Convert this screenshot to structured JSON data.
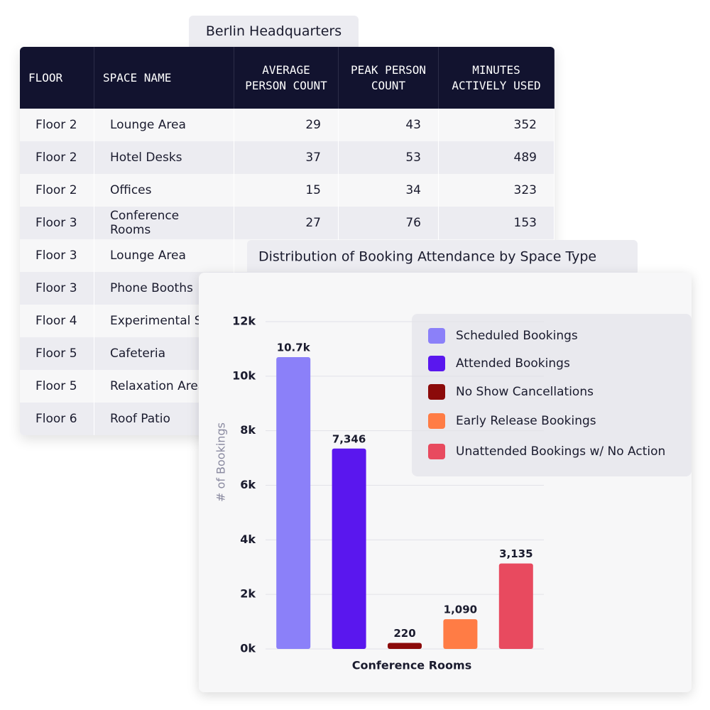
{
  "table": {
    "title": "Berlin Headquarters",
    "columns": [
      "FLOOR",
      "SPACE NAME",
      "AVERAGE PERSON COUNT",
      "PEAK PERSON COUNT",
      "MINUTES ACTIVELY USED"
    ],
    "rows": [
      [
        "Floor 2",
        "Lounge Area",
        29,
        43,
        352
      ],
      [
        "Floor 2",
        "Hotel Desks",
        37,
        53,
        489
      ],
      [
        "Floor 2",
        "Offices",
        15,
        34,
        323
      ],
      [
        "Floor 3",
        "Conference Rooms",
        27,
        76,
        153
      ],
      [
        "Floor 3",
        "Lounge Area"
      ],
      [
        "Floor 3",
        "Phone Booths"
      ],
      [
        "Floor 4",
        "Experimental Sp"
      ],
      [
        "Floor 5",
        "Cafeteria"
      ],
      [
        "Floor 5",
        "Relaxation Area"
      ],
      [
        "Floor 6",
        "Roof Patio"
      ]
    ]
  },
  "chart_data": {
    "type": "bar",
    "title": "Distribution of Booking Attendance by Space Type",
    "y_label": "# of Bookings",
    "categories": [
      "Conference Rooms"
    ],
    "series": [
      {
        "name": "Scheduled Bookings",
        "color": "#8b80f9",
        "values": [
          10700
        ],
        "value_labels": [
          "10.7k"
        ]
      },
      {
        "name": "Attended Bookings",
        "color": "#5a17ee",
        "values": [
          7346
        ],
        "value_labels": [
          "7,346"
        ]
      },
      {
        "name": "No Show Cancellations",
        "color": "#8b0a0a",
        "values": [
          220
        ],
        "value_labels": [
          "220"
        ]
      },
      {
        "name": "Early Release Bookings",
        "color": "#ff7c45",
        "values": [
          1090
        ],
        "value_labels": [
          "1,090"
        ]
      },
      {
        "name": "Unattended Bookings w/ No Action",
        "color": "#e84a5f",
        "values": [
          3135
        ],
        "value_labels": [
          "3,135"
        ]
      }
    ],
    "ylim": [
      0,
      12000
    ],
    "yticks": [
      {
        "value": 0,
        "label": "0k"
      },
      {
        "value": 2000,
        "label": "2k"
      },
      {
        "value": 4000,
        "label": "4k"
      },
      {
        "value": 6000,
        "label": "6k"
      },
      {
        "value": 8000,
        "label": "8k"
      },
      {
        "value": 10000,
        "label": "10k"
      },
      {
        "value": 12000,
        "label": "12k"
      }
    ],
    "grid": true
  }
}
